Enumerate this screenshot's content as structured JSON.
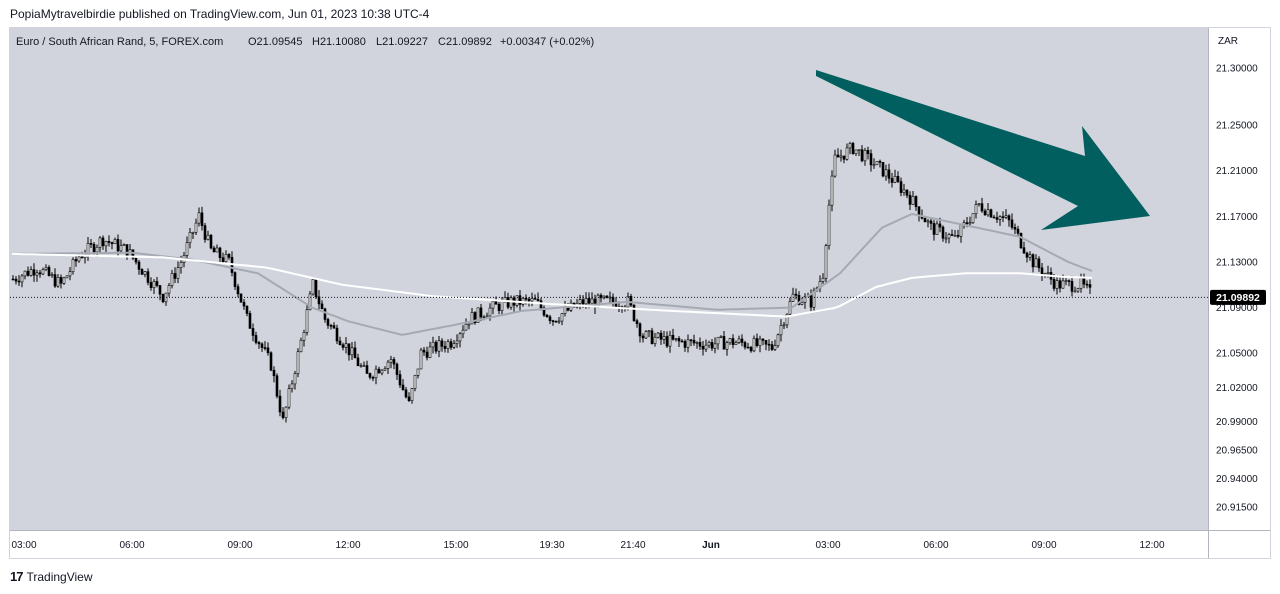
{
  "caption": "PopiaMytravelbirdie published on TradingView.com, Jun 01, 2023 10:38 UTC-4",
  "footer": {
    "brand": "TradingView",
    "logo_icon": "tradingview-logo-icon"
  },
  "chart_data": {
    "type": "candlestick",
    "title": "Euro / South African Rand, 5, FOREX.com",
    "ohlc_header": {
      "O": "O21.09545",
      "H": "H21.10080",
      "L": "L21.09227",
      "C": "C21.09892",
      "change": "+0.00347 (+0.02%)"
    },
    "currency": "ZAR",
    "ylim": [
      20.895,
      21.335
    ],
    "yticks": [
      "21.30000",
      "21.25000",
      "21.21000",
      "21.17000",
      "21.13000",
      "21.09000",
      "21.05000",
      "21.02000",
      "20.99000",
      "20.96500",
      "20.94000",
      "20.91500"
    ],
    "ytick_values": [
      21.3,
      21.25,
      21.21,
      21.17,
      21.13,
      21.09,
      21.05,
      21.02,
      20.99,
      20.965,
      20.94,
      20.915
    ],
    "xticks": [
      "03:00",
      "06:00",
      "09:00",
      "12:00",
      "15:00",
      "19:30",
      "21:40",
      "Jun",
      "03:00",
      "06:00",
      "09:00",
      "12:00"
    ],
    "xtick_bars": [
      4,
      40,
      76,
      112,
      148,
      180,
      207,
      233,
      272,
      308,
      344,
      380
    ],
    "bar_count": 360,
    "current_price": {
      "label": "21.09892",
      "value": 21.09892
    },
    "anchors": [
      [
        0,
        21.115
      ],
      [
        8,
        21.125
      ],
      [
        16,
        21.11
      ],
      [
        22,
        21.135
      ],
      [
        30,
        21.15
      ],
      [
        38,
        21.14
      ],
      [
        50,
        21.1
      ],
      [
        56,
        21.13
      ],
      [
        62,
        21.17
      ],
      [
        66,
        21.14
      ],
      [
        72,
        21.13
      ],
      [
        78,
        21.08
      ],
      [
        86,
        21.04
      ],
      [
        90,
        20.99
      ],
      [
        96,
        21.06
      ],
      [
        100,
        21.11
      ],
      [
        104,
        21.08
      ],
      [
        110,
        21.06
      ],
      [
        118,
        21.03
      ],
      [
        126,
        21.045
      ],
      [
        132,
        21.005
      ],
      [
        136,
        21.05
      ],
      [
        146,
        21.06
      ],
      [
        152,
        21.08
      ],
      [
        160,
        21.09
      ],
      [
        166,
        21.095
      ],
      [
        174,
        21.095
      ],
      [
        180,
        21.08
      ],
      [
        190,
        21.095
      ],
      [
        205,
        21.095
      ],
      [
        210,
        21.065
      ],
      [
        220,
        21.06
      ],
      [
        232,
        21.058
      ],
      [
        240,
        21.06
      ],
      [
        253,
        21.055
      ],
      [
        260,
        21.1
      ],
      [
        266,
        21.095
      ],
      [
        270,
        21.12
      ],
      [
        272,
        21.18
      ],
      [
        274,
        21.22
      ],
      [
        280,
        21.23
      ],
      [
        290,
        21.21
      ],
      [
        298,
        21.19
      ],
      [
        306,
        21.16
      ],
      [
        314,
        21.15
      ],
      [
        322,
        21.18
      ],
      [
        332,
        21.165
      ],
      [
        340,
        21.13
      ],
      [
        348,
        21.11
      ],
      [
        356,
        21.11
      ],
      [
        360,
        21.1
      ]
    ],
    "ma_fast": [
      [
        0,
        21.137
      ],
      [
        40,
        21.138
      ],
      [
        60,
        21.132
      ],
      [
        82,
        21.12
      ],
      [
        100,
        21.09
      ],
      [
        112,
        21.078
      ],
      [
        130,
        21.066
      ],
      [
        148,
        21.075
      ],
      [
        170,
        21.087
      ],
      [
        205,
        21.095
      ],
      [
        235,
        21.088
      ],
      [
        260,
        21.09
      ],
      [
        276,
        21.12
      ],
      [
        290,
        21.16
      ],
      [
        300,
        21.172
      ],
      [
        318,
        21.162
      ],
      [
        336,
        21.152
      ],
      [
        352,
        21.13
      ],
      [
        360,
        21.122
      ]
    ],
    "ma_slow": [
      [
        0,
        21.137
      ],
      [
        50,
        21.134
      ],
      [
        85,
        21.125
      ],
      [
        110,
        21.11
      ],
      [
        140,
        21.1
      ],
      [
        180,
        21.093
      ],
      [
        220,
        21.087
      ],
      [
        258,
        21.082
      ],
      [
        275,
        21.09
      ],
      [
        288,
        21.108
      ],
      [
        300,
        21.116
      ],
      [
        318,
        21.12
      ],
      [
        336,
        21.12
      ],
      [
        350,
        21.117
      ],
      [
        360,
        21.116
      ]
    ],
    "arrow": {
      "color": "#025f5f",
      "direction": "down-right"
    },
    "colors": {
      "background": "#d1d4dc",
      "candle": "#000000",
      "ma_fast": "#a5a9b2",
      "ma_slow": "#ffffff",
      "price_label_bg": "#000000"
    },
    "grid": false
  }
}
